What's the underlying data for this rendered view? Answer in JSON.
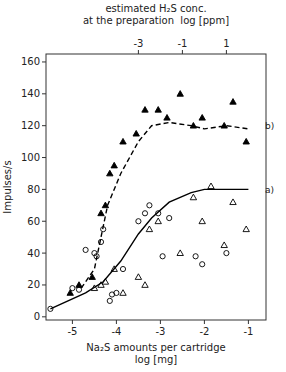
{
  "chart_data": {
    "type": "line",
    "x2label": [
      "estimated H₂S conc.",
      "at the preparation  log [ppm]"
    ],
    "xlabel": [
      "Na₂S amounts per cartridge",
      "log [mg]"
    ],
    "ylabel": "Impulses/s",
    "xlim": [
      -5.6,
      -0.6
    ],
    "ylim": [
      -2,
      165
    ],
    "xticks": [
      -5,
      -4,
      -3,
      -2,
      -1
    ],
    "yticks": [
      0,
      20,
      40,
      60,
      80,
      100,
      120,
      140,
      160
    ],
    "x2lim": [
      -5.6,
      -0.6
    ],
    "x2ticks": [
      {
        "value": -3.5,
        "label": "-3"
      },
      {
        "value": -2.5,
        "label": "-1"
      },
      {
        "value": -1.5,
        "label": "1"
      }
    ],
    "grid": false,
    "series": [
      {
        "type": "line",
        "line_style": "solid",
        "color": "#000000",
        "x": [
          -5.5,
          -4.7,
          -4.3,
          -3.9,
          -3.5,
          -3.2,
          -2.8,
          -2.3,
          -2.0,
          -1.5,
          -1.0
        ],
        "values": [
          5,
          15,
          22,
          35,
          52,
          62,
          72,
          78,
          80,
          80,
          80
        ]
      },
      {
        "type": "line",
        "line_style": "dashed",
        "color": "#000000",
        "x": [
          -4.8,
          -4.5,
          -4.2,
          -3.9,
          -3.5,
          -3.2,
          -2.8,
          -2.3,
          -2.0,
          -1.5,
          -1.0
        ],
        "values": [
          18,
          30,
          70,
          90,
          110,
          120,
          122,
          120,
          118,
          120,
          118
        ]
      },
      {
        "type": "scatter",
        "marker": "open-circle",
        "color": "#000000",
        "x": [
          -5.5,
          -5.0,
          -4.85,
          -4.7,
          -4.5,
          -4.45,
          -4.35,
          -4.3,
          -4.15,
          -4.1,
          -4.0,
          -3.85,
          -3.5,
          -3.35,
          -3.25,
          -3.05,
          -2.95,
          -2.8,
          -2.2,
          -2.05,
          -1.5
        ],
        "values": [
          5,
          18,
          17,
          42,
          40,
          38,
          47,
          55,
          10,
          14,
          15,
          30,
          60,
          65,
          70,
          65,
          38,
          62,
          38,
          33,
          40
        ]
      },
      {
        "type": "scatter",
        "marker": "open-triangle",
        "color": "#000000",
        "x": [
          -4.5,
          -4.35,
          -4.25,
          -4.05,
          -3.85,
          -3.5,
          -3.35,
          -3.25,
          -3.05,
          -2.55,
          -2.25,
          -2.05,
          -1.85,
          -1.55,
          -1.35,
          -1.05
        ],
        "values": [
          18,
          20,
          22,
          30,
          15,
          25,
          20,
          55,
          60,
          40,
          75,
          60,
          82,
          45,
          72,
          55
        ]
      },
      {
        "type": "scatter",
        "marker": "triangle",
        "color": "#000000",
        "x": [
          -5.05,
          -4.85,
          -4.55,
          -4.35,
          -4.25,
          -4.15,
          -4.05,
          -3.85,
          -3.55,
          -3.35,
          -3.05,
          -2.85,
          -2.55,
          -2.25,
          -2.05,
          -1.55,
          -1.35,
          -1.05
        ],
        "values": [
          15,
          20,
          25,
          65,
          70,
          90,
          95,
          110,
          115,
          130,
          130,
          125,
          140,
          120,
          125,
          120,
          135,
          110
        ]
      }
    ],
    "annotations": [
      {
        "text": "a)",
        "x": -0.62,
        "y": 80
      },
      {
        "text": "b)",
        "x": -0.62,
        "y": 120
      }
    ]
  }
}
